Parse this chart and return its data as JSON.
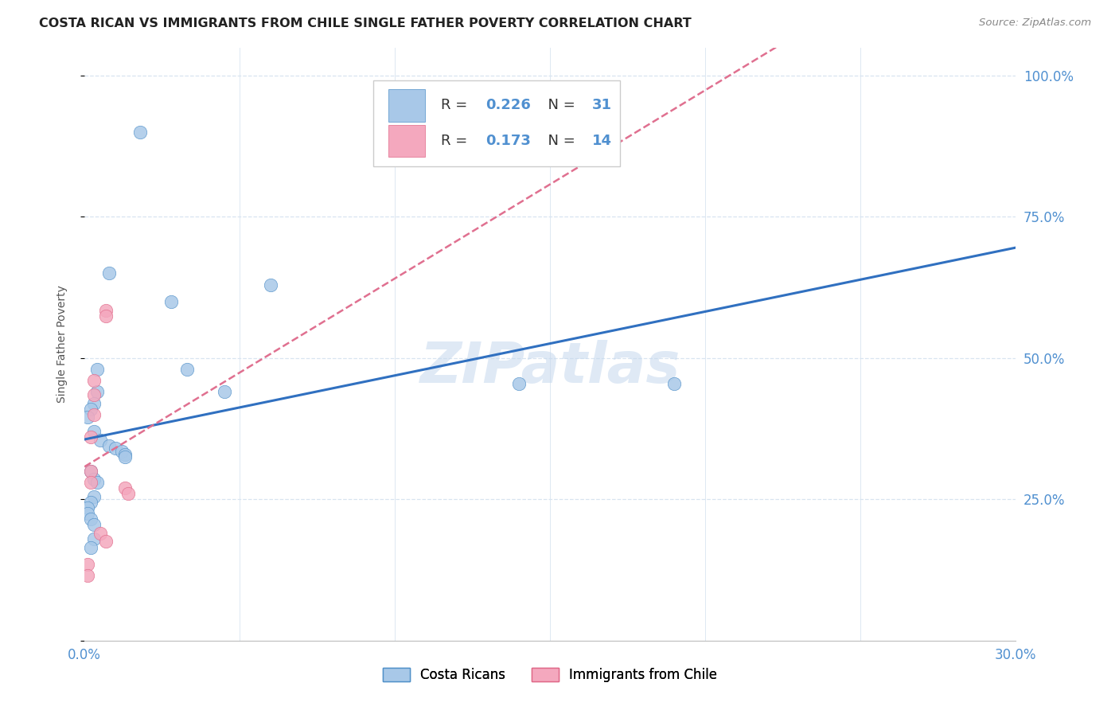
{
  "title": "COSTA RICAN VS IMMIGRANTS FROM CHILE SINGLE FATHER POVERTY CORRELATION CHART",
  "source": "Source: ZipAtlas.com",
  "ylabel": "Single Father Poverty",
  "xlim": [
    0.0,
    0.3
  ],
  "ylim": [
    0.0,
    1.05
  ],
  "blue_r": 0.226,
  "blue_n": 31,
  "pink_r": 0.173,
  "pink_n": 14,
  "blue_color": "#a8c8e8",
  "pink_color": "#f4a8be",
  "blue_edge_color": "#5090c8",
  "pink_edge_color": "#e06888",
  "blue_line_color": "#3070c0",
  "pink_line_color": "#e07090",
  "background_color": "#ffffff",
  "grid_color": "#d8e4f0",
  "right_tick_color": "#5090d0",
  "watermark": "ZIPatlas",
  "blue_x": [
    0.018,
    0.008,
    0.06,
    0.028,
    0.004,
    0.033,
    0.004,
    0.045,
    0.003,
    0.002,
    0.001,
    0.003,
    0.005,
    0.008,
    0.01,
    0.012,
    0.013,
    0.013,
    0.002,
    0.003,
    0.004,
    0.003,
    0.002,
    0.001,
    0.001,
    0.002,
    0.003,
    0.14,
    0.19,
    0.003,
    0.002
  ],
  "blue_y": [
    0.9,
    0.65,
    0.63,
    0.6,
    0.48,
    0.48,
    0.44,
    0.44,
    0.42,
    0.41,
    0.395,
    0.37,
    0.355,
    0.345,
    0.34,
    0.335,
    0.33,
    0.325,
    0.3,
    0.285,
    0.28,
    0.255,
    0.245,
    0.235,
    0.225,
    0.215,
    0.205,
    0.455,
    0.455,
    0.18,
    0.165
  ],
  "pink_x": [
    0.007,
    0.007,
    0.003,
    0.003,
    0.003,
    0.002,
    0.002,
    0.002,
    0.013,
    0.014,
    0.005,
    0.007,
    0.001,
    0.001
  ],
  "pink_y": [
    0.585,
    0.575,
    0.46,
    0.435,
    0.4,
    0.36,
    0.3,
    0.28,
    0.27,
    0.26,
    0.19,
    0.175,
    0.135,
    0.115
  ]
}
